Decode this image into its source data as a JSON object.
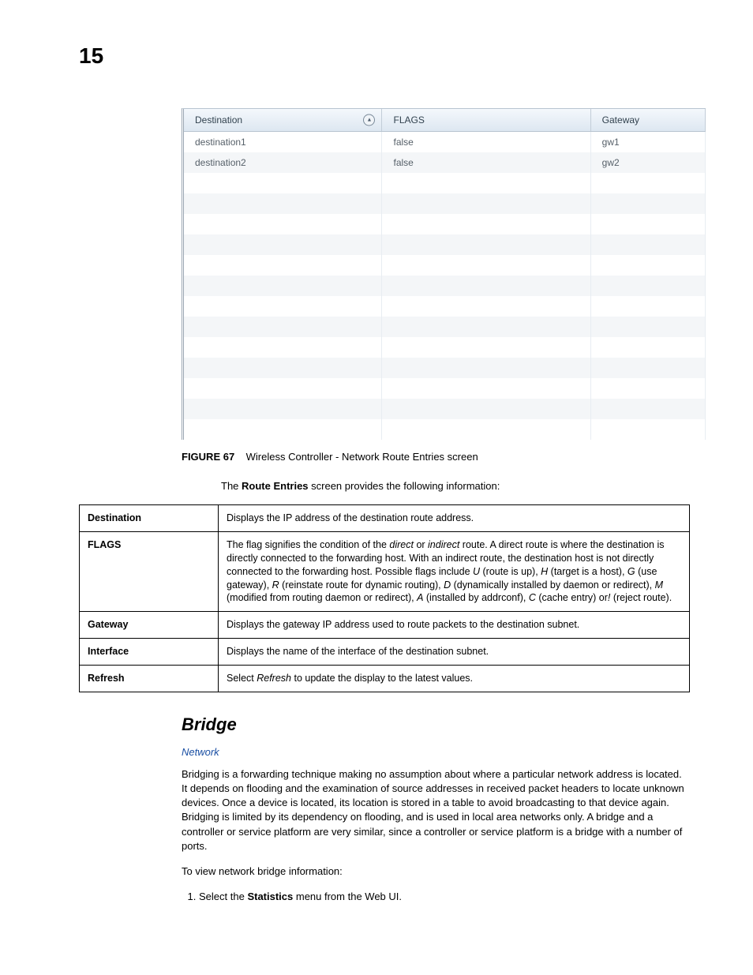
{
  "page": {
    "number": "15"
  },
  "uiTable": {
    "columns": [
      {
        "label": "Destination",
        "width": "38%",
        "sorted": true
      },
      {
        "label": "FLAGS",
        "width": "40%",
        "sorted": false
      },
      {
        "label": "Gateway",
        "width": "22%",
        "sorted": false
      }
    ],
    "rows": [
      {
        "destination": "destination1",
        "flags": "false",
        "gateway": "gw1"
      },
      {
        "destination": "destination2",
        "flags": "false",
        "gateway": "gw2"
      }
    ],
    "blankRows": 13,
    "colors": {
      "headerGradientTop": "#f4f8fc",
      "headerGradientBottom": "#dde7f1",
      "rowEven": "#f4f6f8",
      "rowOdd": "#ffffff",
      "border": "#c2cdd8",
      "text": "#555f68"
    }
  },
  "figure": {
    "lead": "FIGURE 67",
    "caption": "Wireless Controller - Network Route Entries screen"
  },
  "intro": {
    "prefix": "The ",
    "boldTerm": "Route Entries",
    "suffix": " screen provides the following information:"
  },
  "defTable": {
    "rows": [
      {
        "term": "Destination",
        "htmlDesc": "Displays the IP address of the destination route address."
      },
      {
        "term": "FLAGS",
        "htmlDesc": "The flag signifies the condition of the <em class='term'>direct</em> or <em class='term'>indirect</em> route. A direct route is where the destination is directly connected to the forwarding host. With an indirect route, the destination host is not directly connected to the forwarding host. Possible flags include <em class='term'>U</em> (route is up), <em class='term'>H</em> (target is a host), <em class='term'>G</em> (use gateway), <em class='term'>R</em> (reinstate route for dynamic routing), <em class='term'>D</em> (dynamically installed by daemon or redirect), <em class='term'>M</em> (modified from routing daemon or redirect), <em class='term'>A</em> (installed by addrconf), <em class='term'>C</em> (cache entry) or<em class='term'>!</em> (reject route)."
      },
      {
        "term": "Gateway",
        "htmlDesc": "Displays the gateway IP address used to route packets to the destination subnet."
      },
      {
        "term": "Interface",
        "htmlDesc": "Displays the name of the interface of the destination subnet."
      },
      {
        "term": "Refresh",
        "htmlDesc": "Select <em class='term'>Refresh</em> to update the display to the latest values."
      }
    ]
  },
  "bridge": {
    "heading": "Bridge",
    "crumb": "Network",
    "para1": "Bridging is a forwarding technique making no assumption about where a particular network address is located. It depends on flooding and the examination of source addresses in received packet headers to locate unknown devices. Once a device is located, its location is stored in a table to avoid broadcasting to that device again. Bridging is limited by its dependency on flooding, and is used in local area networks only. A bridge and a controller or service platform are very similar, since a controller or service platform is a bridge with a number of ports.",
    "para2": "To view network bridge information:",
    "step1_prefix": "Select the ",
    "step1_bold": "Statistics",
    "step1_suffix": " menu from the Web UI."
  }
}
